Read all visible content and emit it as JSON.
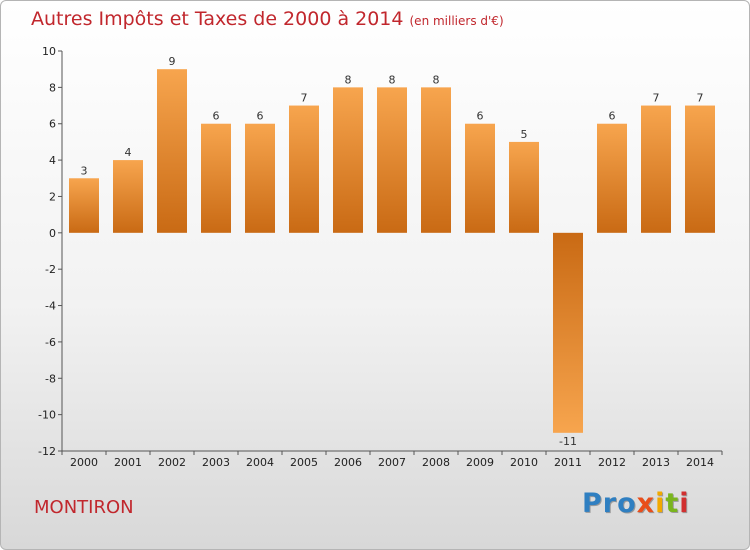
{
  "header": {
    "title": "Autres Impôts et Taxes de 2000 à 2014",
    "unit": "(en milliers d'€)"
  },
  "footer": {
    "commune": "MONTIRON",
    "logo": [
      "Pro",
      "x",
      "i",
      "t",
      "i"
    ]
  },
  "colors": {
    "title": "#c1272d",
    "bar_light": "#f6a24c",
    "bar_dark": "#c96a14"
  },
  "chart_data": {
    "type": "bar",
    "categories": [
      "2000",
      "2001",
      "2002",
      "2003",
      "2004",
      "2005",
      "2006",
      "2007",
      "2008",
      "2009",
      "2010",
      "2011",
      "2012",
      "2013",
      "2014"
    ],
    "values": [
      3,
      4,
      9,
      6,
      6,
      7,
      8,
      8,
      8,
      6,
      5,
      -11,
      6,
      7,
      7
    ],
    "data_labels": [
      "3",
      "4",
      "9",
      "6",
      "6",
      "7",
      "8",
      "8",
      "8",
      "6",
      "5",
      "-11",
      "6",
      "7",
      "7"
    ],
    "title": "Autres Impôts et Taxes de 2000 à 2014",
    "ylim": [
      -12,
      10
    ],
    "yticks": [
      10,
      8,
      6,
      4,
      2,
      0,
      -2,
      -4,
      -6,
      -8,
      -10,
      -12
    ],
    "grid": false
  }
}
